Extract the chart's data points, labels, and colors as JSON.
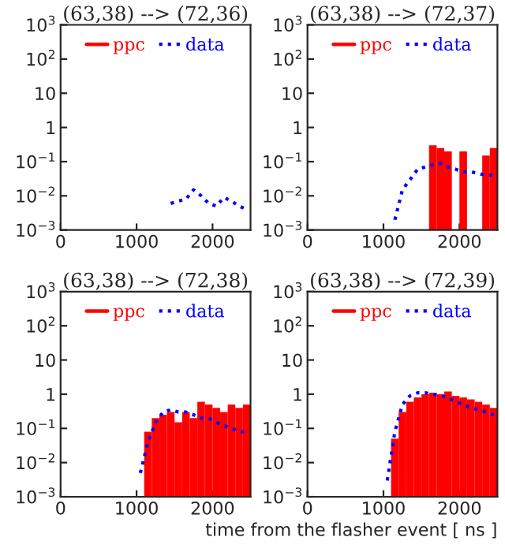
{
  "chart_data": [
    {
      "type": "line",
      "title": "(63,38) --> (72,36)",
      "xlim": [
        0,
        2500
      ],
      "xticks": [
        0,
        1000,
        2000
      ],
      "ylim": [
        0.001,
        1000
      ],
      "yticks": [
        {
          "value": 0.001,
          "label": "10$^{−3}$"
        },
        {
          "value": 0.01,
          "label": "10$^{−2}$"
        },
        {
          "value": 0.1,
          "label": "10$^{−1}$"
        },
        {
          "value": 1,
          "label": "1"
        },
        {
          "value": 10,
          "label": "10"
        },
        {
          "value": 100,
          "label": "10$^{2}$"
        },
        {
          "value": 1000,
          "label": "10$^{3}$"
        }
      ],
      "log": "y",
      "legend": "top",
      "grid": false,
      "series": [
        {
          "name": "ppc",
          "type": "histogram",
          "color": "#ff0000"
        },
        {
          "name": "data",
          "type": "line",
          "color": "#0000ff",
          "line_style": "dotted",
          "x": [
            1450,
            1550,
            1650,
            1750,
            1850,
            1950,
            2050,
            2150,
            2250,
            2350,
            2450
          ],
          "values": [
            0.006,
            0.007,
            0.008,
            0.015,
            0.01,
            0.006,
            0.005,
            0.009,
            0.007,
            0.005,
            0.004
          ]
        }
      ]
    },
    {
      "type": "histogram",
      "title": "(63,38) --> (72,37)",
      "bins": [
        0,
        100,
        200,
        300,
        400,
        500,
        600,
        700,
        800,
        900,
        1000,
        1100,
        1200,
        1300,
        1400,
        1500,
        1600,
        1700,
        1800,
        1900,
        2000,
        2100,
        2200,
        2300,
        2400,
        2500
      ],
      "xlim": [
        0,
        2500
      ],
      "xticks": [
        0,
        1000,
        2000
      ],
      "ylim": [
        0.001,
        1000
      ],
      "yticks": [
        {
          "value": 0.001,
          "label": "10$^{−3}$"
        },
        {
          "value": 0.01,
          "label": "10$^{−2}$"
        },
        {
          "value": 0.1,
          "label": "10$^{−1}$"
        },
        {
          "value": 1,
          "label": "1"
        },
        {
          "value": 10,
          "label": "10"
        },
        {
          "value": 100,
          "label": "10$^{2}$"
        },
        {
          "value": 1000,
          "label": "10$^{3}$"
        }
      ],
      "log": "y",
      "legend": "top",
      "grid": false,
      "series": [
        {
          "name": "ppc",
          "color": "#ff0000",
          "values": [
            null,
            null,
            null,
            null,
            null,
            null,
            null,
            null,
            null,
            null,
            null,
            null,
            null,
            null,
            null,
            null,
            0.3,
            0.25,
            0.2,
            null,
            0.2,
            null,
            null,
            0.15,
            0.25
          ]
        },
        {
          "name": "data",
          "type": "line",
          "color": "#0000ff",
          "line_style": "dotted",
          "x": [
            1150,
            1250,
            1350,
            1450,
            1550,
            1650,
            1750,
            1850,
            1950,
            2050,
            2150,
            2250,
            2350,
            2450
          ],
          "values": [
            0.002,
            0.015,
            0.03,
            0.06,
            0.07,
            0.08,
            0.09,
            0.07,
            0.06,
            0.05,
            0.05,
            0.045,
            0.04,
            0.04
          ]
        }
      ]
    },
    {
      "type": "histogram",
      "title": "(63,38) --> (72,38)",
      "bins": [
        0,
        100,
        200,
        300,
        400,
        500,
        600,
        700,
        800,
        900,
        1000,
        1100,
        1200,
        1300,
        1400,
        1500,
        1600,
        1700,
        1800,
        1900,
        2000,
        2100,
        2200,
        2300,
        2400,
        2500
      ],
      "xlim": [
        0,
        2500
      ],
      "xticks": [
        0,
        1000,
        2000
      ],
      "ylim": [
        0.001,
        1000
      ],
      "yticks": [
        {
          "value": 0.001,
          "label": "10$^{−3}$"
        },
        {
          "value": 0.01,
          "label": "10$^{−2}$"
        },
        {
          "value": 0.1,
          "label": "10$^{−1}$"
        },
        {
          "value": 1,
          "label": "1"
        },
        {
          "value": 10,
          "label": "10"
        },
        {
          "value": 100,
          "label": "10$^{2}$"
        },
        {
          "value": 1000,
          "label": "10$^{3}$"
        }
      ],
      "log": "y",
      "legend": "top",
      "grid": false,
      "series": [
        {
          "name": "ppc",
          "color": "#ff0000",
          "values": [
            null,
            null,
            null,
            null,
            null,
            null,
            null,
            null,
            null,
            null,
            null,
            0.08,
            0.2,
            0.25,
            0.3,
            0.15,
            0.3,
            0.2,
            0.6,
            0.5,
            0.4,
            0.3,
            0.5,
            0.4,
            0.5
          ]
        },
        {
          "name": "data",
          "type": "line",
          "color": "#0000ff",
          "line_style": "dotted",
          "x": [
            1050,
            1150,
            1250,
            1350,
            1450,
            1550,
            1650,
            1750,
            1850,
            1950,
            2050,
            2150,
            2250,
            2350,
            2450
          ],
          "values": [
            0.005,
            0.04,
            0.15,
            0.3,
            0.35,
            0.3,
            0.3,
            0.25,
            0.2,
            0.2,
            0.15,
            0.12,
            0.1,
            0.08,
            0.08
          ]
        }
      ]
    },
    {
      "type": "histogram",
      "title": "(63,38) --> (72,39)",
      "xlabel": "time from the flasher event [ ns ]",
      "bins": [
        0,
        100,
        200,
        300,
        400,
        500,
        600,
        700,
        800,
        900,
        1000,
        1100,
        1200,
        1300,
        1400,
        1500,
        1600,
        1700,
        1800,
        1900,
        2000,
        2100,
        2200,
        2300,
        2400,
        2500
      ],
      "xlim": [
        0,
        2500
      ],
      "xticks": [
        0,
        1000,
        2000
      ],
      "ylim": [
        0.001,
        1000
      ],
      "yticks": [
        {
          "value": 0.001,
          "label": "10$^{−3}$"
        },
        {
          "value": 0.01,
          "label": "10$^{−2}$"
        },
        {
          "value": 0.1,
          "label": "10$^{−1}$"
        },
        {
          "value": 1,
          "label": "1"
        },
        {
          "value": 10,
          "label": "10"
        },
        {
          "value": 100,
          "label": "10$^{2}$"
        },
        {
          "value": 1000,
          "label": "10$^{3}$"
        }
      ],
      "log": "y",
      "legend": "top",
      "grid": false,
      "series": [
        {
          "name": "ppc",
          "color": "#ff0000",
          "values": [
            null,
            null,
            null,
            null,
            null,
            null,
            null,
            null,
            null,
            null,
            null,
            0.05,
            0.3,
            0.6,
            0.8,
            1.0,
            1.1,
            1.0,
            1.2,
            0.9,
            0.8,
            0.7,
            0.6,
            0.5,
            0.4
          ]
        },
        {
          "name": "data",
          "type": "line",
          "color": "#0000ff",
          "line_style": "dotted",
          "x": [
            1050,
            1150,
            1250,
            1350,
            1450,
            1550,
            1650,
            1750,
            1850,
            1950,
            2050,
            2150,
            2250,
            2350,
            2450
          ],
          "values": [
            0.003,
            0.08,
            0.5,
            0.9,
            1.1,
            1.1,
            1.0,
            0.9,
            0.8,
            0.6,
            0.5,
            0.4,
            0.35,
            0.3,
            0.25
          ]
        }
      ]
    }
  ]
}
